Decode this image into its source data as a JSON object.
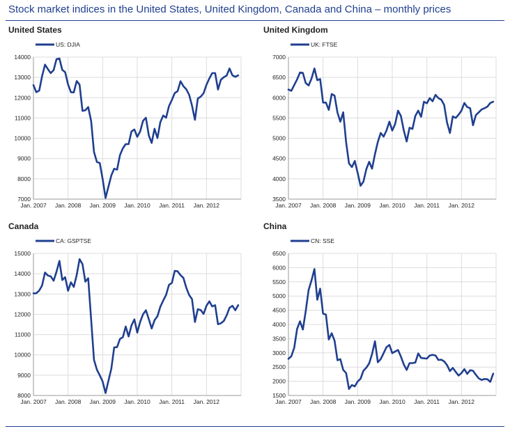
{
  "title": "Stock market indices in the United States, United Kingdom, Canada and China – monthly prices",
  "colors": {
    "title": "#1f3f8f",
    "series": "#1f3f8f",
    "grid": "#dcdcdc",
    "axis": "#9a9a9a"
  },
  "chart_data": [
    {
      "panel_title": "United States",
      "type": "line",
      "legend": {
        "label": "US: DJIA",
        "position": "top-left"
      },
      "x_tick_labels": [
        "Jan. 2007",
        "Jan. 2008",
        "Jan. 2009",
        "Jan. 2010",
        "Jan. 2011",
        "Jan. 2012"
      ],
      "x_start": "Jan. 2007",
      "ylim": [
        7000,
        14000
      ],
      "y_ticks": [
        7000,
        8000,
        9000,
        10000,
        11000,
        12000,
        13000,
        14000
      ],
      "grid": true,
      "series": [
        {
          "name": "US: DJIA",
          "values": [
            12620,
            12270,
            12350,
            13060,
            13630,
            13410,
            13210,
            13360,
            13900,
            13930,
            13370,
            13260,
            12650,
            12270,
            12260,
            12820,
            12640,
            11350,
            11380,
            11540,
            10850,
            9330,
            8830,
            8780,
            8000,
            7060,
            7610,
            8170,
            8500,
            8450,
            9170,
            9500,
            9710,
            9710,
            10340,
            10430,
            10070,
            10330,
            10860,
            11010,
            10140,
            9770,
            10470,
            10010,
            10790,
            11120,
            11010,
            11580,
            11890,
            12230,
            12320,
            12810,
            12570,
            12410,
            12140,
            11610,
            10910,
            11960,
            12050,
            12220,
            12630,
            12950,
            13210,
            13210,
            12400,
            12880,
            13010,
            13090,
            13440,
            13100,
            13030,
            13100
          ]
        }
      ]
    },
    {
      "panel_title": "United Kingdom",
      "type": "line",
      "legend": {
        "label": "UK: FTSE",
        "position": "top-left"
      },
      "x_tick_labels": [
        "Jan. 2007",
        "Jan. 2008",
        "Jan. 2009",
        "Jan. 2010",
        "Jan. 2011",
        "Jan. 2012"
      ],
      "x_start": "Jan. 2007",
      "ylim": [
        3500,
        7000
      ],
      "y_ticks": [
        3500,
        4000,
        4500,
        5000,
        5500,
        6000,
        6500,
        7000
      ],
      "grid": true,
      "series": [
        {
          "name": "UK: FTSE",
          "values": [
            6200,
            6170,
            6310,
            6450,
            6620,
            6610,
            6360,
            6300,
            6470,
            6720,
            6430,
            6460,
            5880,
            5880,
            5700,
            6090,
            6050,
            5630,
            5410,
            5640,
            4900,
            4380,
            4290,
            4440,
            4150,
            3830,
            3930,
            4240,
            4420,
            4250,
            4610,
            4910,
            5130,
            5040,
            5190,
            5410,
            5190,
            5350,
            5680,
            5550,
            5190,
            4920,
            5260,
            5230,
            5550,
            5680,
            5530,
            5900,
            5860,
            5990,
            5910,
            6070,
            5990,
            5950,
            5820,
            5390,
            5130,
            5540,
            5500,
            5580,
            5680,
            5870,
            5770,
            5740,
            5320,
            5570,
            5640,
            5710,
            5740,
            5780,
            5870,
            5900
          ]
        }
      ]
    },
    {
      "panel_title": "Canada",
      "type": "line",
      "legend": {
        "label": "CA: GSPTSE",
        "position": "top-left"
      },
      "x_tick_labels": [
        "Jan. 2007",
        "Jan. 2008",
        "Jan. 2009",
        "Jan. 2010",
        "Jan. 2011",
        "Jan. 2012"
      ],
      "x_start": "Jan. 2007",
      "ylim": [
        8000,
        15000
      ],
      "y_ticks": [
        8000,
        9000,
        10000,
        11000,
        12000,
        13000,
        14000,
        15000
      ],
      "grid": true,
      "series": [
        {
          "name": "CA: GSPTSE",
          "values": [
            13030,
            13040,
            13170,
            13420,
            14060,
            13910,
            13870,
            13660,
            14100,
            14630,
            13690,
            13830,
            13160,
            13580,
            13350,
            13940,
            14720,
            14470,
            13610,
            13780,
            11750,
            9760,
            9270,
            8990,
            8690,
            8120,
            8720,
            9320,
            10370,
            10380,
            10790,
            10870,
            11400,
            10910,
            11450,
            11750,
            11100,
            11620,
            12000,
            12200,
            11760,
            11300,
            11710,
            11910,
            12370,
            12680,
            12960,
            13450,
            13550,
            14140,
            14120,
            13930,
            13800,
            13310,
            12950,
            12750,
            11620,
            12250,
            12210,
            12020,
            12420,
            12640,
            12390,
            12450,
            11510,
            11560,
            11670,
            11950,
            12320,
            12420,
            12200,
            12450
          ]
        }
      ]
    },
    {
      "panel_title": "China",
      "type": "line",
      "legend": {
        "label": "CN: SSE",
        "position": "top-left"
      },
      "x_tick_labels": [
        "Jan. 2007",
        "Jan. 2008",
        "Jan. 2009",
        "Jan. 2010",
        "Jan. 2011",
        "Jan. 2012"
      ],
      "x_start": "Jan. 2007",
      "ylim": [
        1500,
        6500
      ],
      "y_ticks": [
        1500,
        2000,
        2500,
        3000,
        3500,
        4000,
        4500,
        5000,
        5500,
        6000,
        6500
      ],
      "grid": true,
      "series": [
        {
          "name": "CN: SSE",
          "values": [
            2790,
            2880,
            3180,
            3840,
            4110,
            3820,
            4470,
            5220,
            5550,
            5950,
            4870,
            5260,
            4380,
            4350,
            3470,
            3690,
            3430,
            2740,
            2780,
            2400,
            2290,
            1730,
            1870,
            1820,
            1990,
            2090,
            2370,
            2480,
            2630,
            2960,
            3410,
            2670,
            2780,
            2990,
            3200,
            3280,
            2990,
            3050,
            3100,
            2870,
            2590,
            2400,
            2640,
            2640,
            2660,
            2980,
            2820,
            2810,
            2800,
            2910,
            2930,
            2910,
            2750,
            2760,
            2700,
            2570,
            2360,
            2470,
            2330,
            2200,
            2290,
            2430,
            2260,
            2390,
            2370,
            2230,
            2100,
            2050,
            2080,
            2070,
            1980,
            2270
          ]
        }
      ]
    }
  ]
}
